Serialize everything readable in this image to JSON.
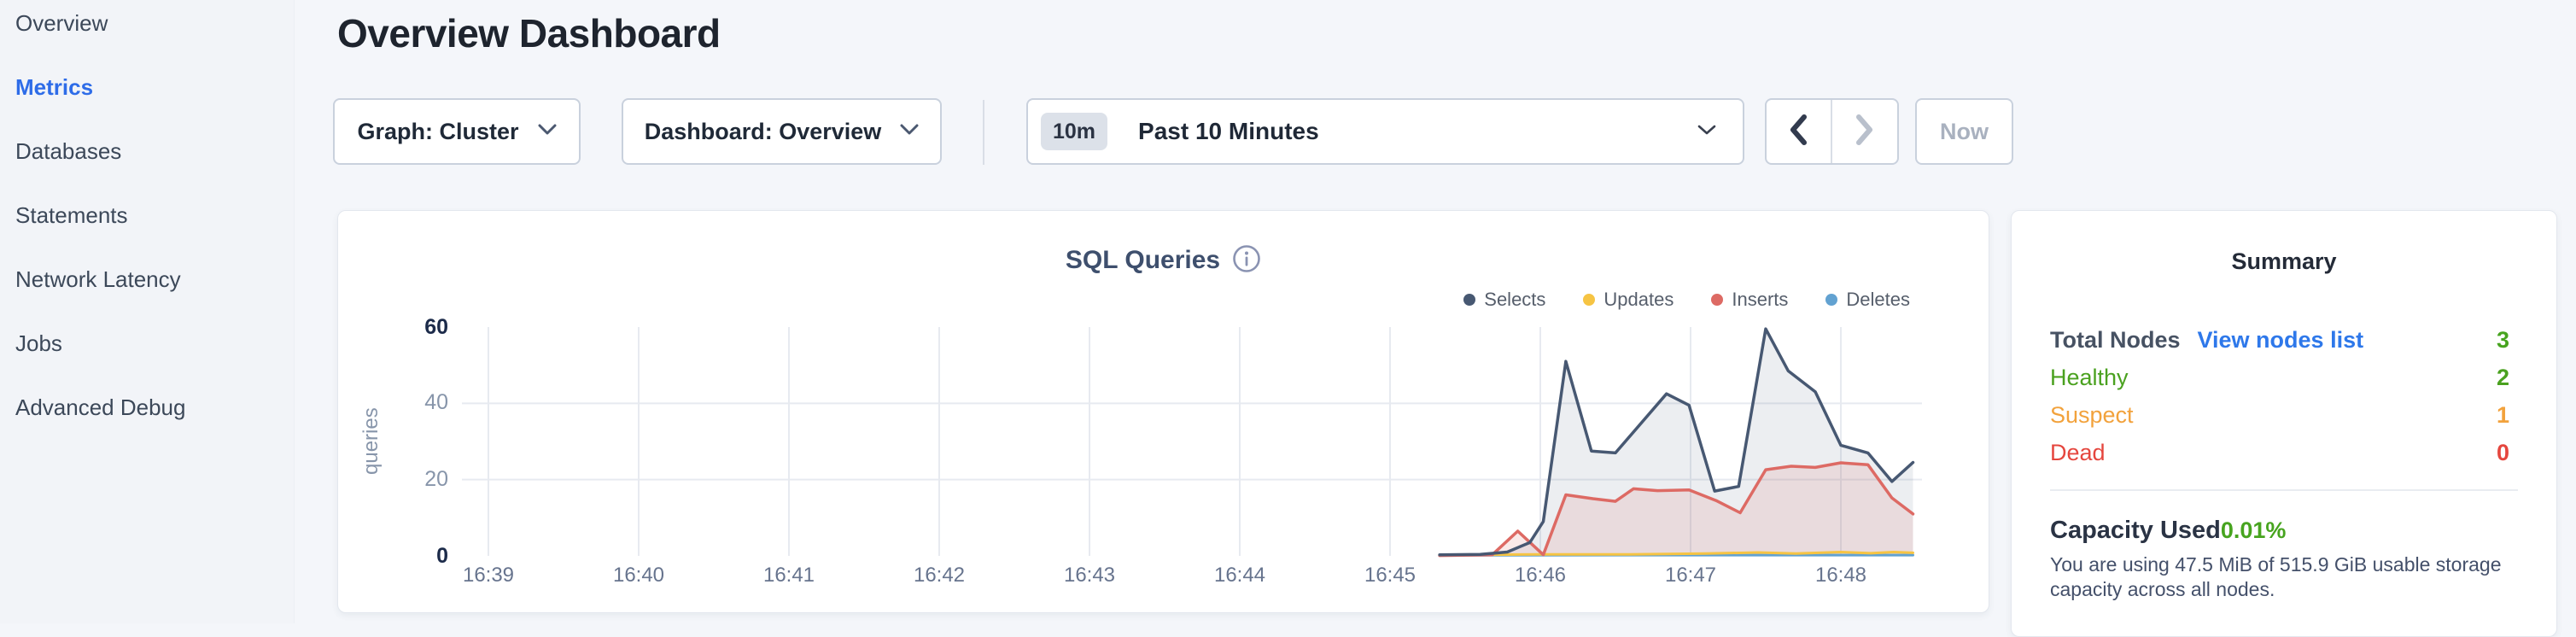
{
  "sidebar": {
    "items": [
      {
        "label": "Overview",
        "active": false
      },
      {
        "label": "Metrics",
        "active": true
      },
      {
        "label": "Databases",
        "active": false
      },
      {
        "label": "Statements",
        "active": false
      },
      {
        "label": "Network Latency",
        "active": false
      },
      {
        "label": "Jobs",
        "active": false
      },
      {
        "label": "Advanced Debug",
        "active": false
      }
    ]
  },
  "header": {
    "title": "Overview Dashboard"
  },
  "controls": {
    "graph_dropdown": {
      "label": "Graph: Cluster"
    },
    "dashboard_dropdown": {
      "label": "Dashboard: Overview"
    },
    "time_window": {
      "badge": "10m",
      "label": "Past 10 Minutes"
    },
    "now_button": {
      "label": "Now"
    }
  },
  "chart_data": {
    "type": "area",
    "title": "SQL Queries",
    "ylabel": "queries",
    "ylim": [
      0,
      60
    ],
    "y_tick_labels": [
      "0",
      "20",
      "40",
      "60"
    ],
    "x_ticks": [
      "16:39",
      "16:40",
      "16:41",
      "16:42",
      "16:43",
      "16:44",
      "16:45",
      "16:46",
      "16:47",
      "16:48"
    ],
    "grid": true,
    "legend_position": "top-right",
    "x_domain_minutes_after_1639": [
      0,
      9.48
    ],
    "series": [
      {
        "name": "Selects",
        "color": "#475872",
        "fill": "rgba(71,88,114,0.10)",
        "points": [
          [
            6.33,
            0.3
          ],
          [
            6.6,
            0.4
          ],
          [
            6.78,
            1
          ],
          [
            6.93,
            3.5
          ],
          [
            7.02,
            9
          ],
          [
            7.17,
            51
          ],
          [
            7.34,
            27.5
          ],
          [
            7.5,
            27
          ],
          [
            7.84,
            42.5
          ],
          [
            7.99,
            39.5
          ],
          [
            8.16,
            17
          ],
          [
            8.32,
            18.2
          ],
          [
            8.5,
            59.5
          ],
          [
            8.65,
            48.5
          ],
          [
            8.83,
            43
          ],
          [
            9.0,
            29
          ],
          [
            9.18,
            27
          ],
          [
            9.34,
            19.5
          ],
          [
            9.48,
            24.5
          ]
        ]
      },
      {
        "name": "Updates",
        "color": "#f6c443",
        "fill": "rgba(246,196,67,0.12)",
        "points": [
          [
            6.33,
            0.2
          ],
          [
            7.0,
            0.4
          ],
          [
            7.6,
            0.4
          ],
          [
            8.1,
            0.6
          ],
          [
            8.45,
            0.9
          ],
          [
            8.7,
            0.6
          ],
          [
            9.0,
            1.0
          ],
          [
            9.2,
            0.7
          ],
          [
            9.35,
            1.0
          ],
          [
            9.48,
            0.8
          ]
        ]
      },
      {
        "name": "Inserts",
        "color": "#dd6a64",
        "fill": "rgba(221,106,100,0.14)",
        "points": [
          [
            6.33,
            0.1
          ],
          [
            6.68,
            0.3
          ],
          [
            6.85,
            6.5
          ],
          [
            7.02,
            0.3
          ],
          [
            7.17,
            16
          ],
          [
            7.35,
            15
          ],
          [
            7.5,
            14.3
          ],
          [
            7.62,
            17.6
          ],
          [
            7.78,
            17.1
          ],
          [
            7.99,
            17.3
          ],
          [
            8.17,
            14.5
          ],
          [
            8.33,
            11.3
          ],
          [
            8.5,
            22.6
          ],
          [
            8.67,
            23.5
          ],
          [
            8.83,
            23.2
          ],
          [
            9.0,
            24.4
          ],
          [
            9.18,
            23.9
          ],
          [
            9.34,
            15.2
          ],
          [
            9.48,
            11
          ]
        ]
      },
      {
        "name": "Deletes",
        "color": "#62a2d1",
        "fill": null,
        "points": [
          [
            6.33,
            0.15
          ],
          [
            7.5,
            0.2
          ],
          [
            8.5,
            0.2
          ],
          [
            9.48,
            0.2
          ]
        ]
      }
    ],
    "gridline_color": "#e7eaf0"
  },
  "summary": {
    "title": "Summary",
    "total_nodes": {
      "label": "Total Nodes",
      "link": "View nodes list",
      "link_color": "#2e78ea",
      "value": "3",
      "value_color": "#47a41f"
    },
    "statuses": [
      {
        "label": "Healthy",
        "value": "2",
        "color": "#4aa11f"
      },
      {
        "label": "Suspect",
        "value": "1",
        "color": "#f2a23c"
      },
      {
        "label": "Dead",
        "value": "0",
        "color": "#e5463e"
      }
    ],
    "capacity": {
      "label": "Capacity Used",
      "value": "0.01%",
      "value_color": "#47a41f",
      "description": "You are using 47.5 MiB of 515.9 GiB usable storage capacity across all nodes."
    }
  }
}
